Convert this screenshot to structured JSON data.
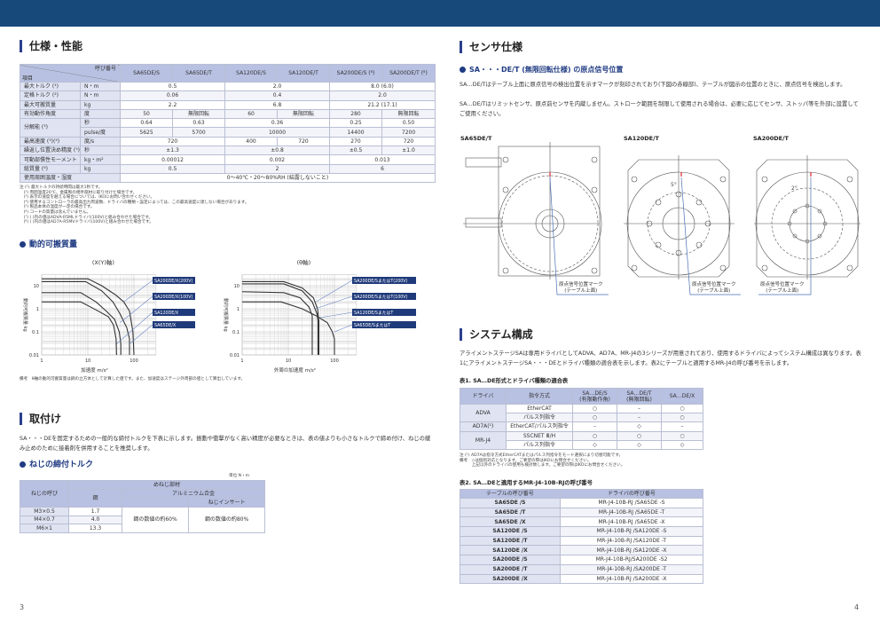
{
  "left": {
    "section_spec": "仕様・性能",
    "spec_table": {
      "head": [
        [
          {
            "t": "項目",
            "c": 2,
            "diag": "呼び番号",
            "cls": "h"
          },
          {
            "t": "SA65DE/S",
            "cls": "h"
          },
          {
            "t": "SA65DE/T",
            "cls": "h"
          },
          {
            "t": "SA120DE/S",
            "cls": "h"
          },
          {
            "t": "SA120DE/T",
            "cls": "h"
          },
          {
            "t": "SA200DE/S (⁸)",
            "cls": "h"
          },
          {
            "t": "SA200DE/T (⁸)",
            "cls": "h"
          }
        ]
      ],
      "rows": [
        [
          {
            "t": "最大トルク (¹)",
            "cls": "s"
          },
          {
            "t": "N・m",
            "cls": "s"
          },
          {
            "t": "0.5",
            "c": 2
          },
          {
            "t": "2.0",
            "c": 2
          },
          {
            "t": "8.0 (6.0)",
            "c": 2
          }
        ],
        [
          {
            "t": "定格トルク (²)",
            "cls": "s"
          },
          {
            "t": "N・m",
            "cls": "s"
          },
          {
            "t": "0.06",
            "c": 2
          },
          {
            "t": "0.4",
            "c": 2
          },
          {
            "t": "2.0",
            "c": 2
          }
        ],
        [
          {
            "t": "最大可搬質量",
            "cls": "s"
          },
          {
            "t": "kg",
            "cls": "s"
          },
          {
            "t": "2.2",
            "c": 2
          },
          {
            "t": "6.8",
            "c": 2
          },
          {
            "t": "21.2 (17.1)",
            "c": 2
          }
        ],
        [
          {
            "t": "有効動作角度",
            "cls": "s"
          },
          {
            "t": "度",
            "cls": "s"
          },
          {
            "t": "50"
          },
          {
            "t": "無限回転"
          },
          {
            "t": "60"
          },
          {
            "t": "無限回転"
          },
          {
            "t": "280"
          },
          {
            "t": "無限回転"
          }
        ],
        [
          {
            "t": "分解能 (³)",
            "cls": "s",
            "r": 2
          },
          {
            "t": "秒",
            "cls": "s"
          },
          {
            "t": "0.64"
          },
          {
            "t": "0.63"
          },
          {
            "t": "0.36",
            "c": 2
          },
          {
            "t": "0.25"
          },
          {
            "t": "0.50"
          }
        ],
        [
          {
            "t": "pulse/度",
            "cls": "s"
          },
          {
            "t": "5625"
          },
          {
            "t": "5700"
          },
          {
            "t": "10000",
            "c": 2
          },
          {
            "t": "14400"
          },
          {
            "t": "7200"
          }
        ],
        [
          {
            "t": "最高速度 (³)(⁴)",
            "cls": "s"
          },
          {
            "t": "度/s",
            "cls": "s"
          },
          {
            "t": "720",
            "c": 2
          },
          {
            "t": "400"
          },
          {
            "t": "720"
          },
          {
            "t": "270"
          },
          {
            "t": "720"
          }
        ],
        [
          {
            "t": "繰返し位置決め精度 (⁵)",
            "cls": "s"
          },
          {
            "t": "秒",
            "cls": "s"
          },
          {
            "t": "±1.3",
            "c": 2
          },
          {
            "t": "±0.8",
            "c": 2
          },
          {
            "t": "±0.5"
          },
          {
            "t": "±1.0"
          }
        ],
        [
          {
            "t": "可動部慣性モーメント",
            "cls": "s"
          },
          {
            "t": "kg・m²",
            "cls": "s"
          },
          {
            "t": "0.00012",
            "c": 2
          },
          {
            "t": "0.002",
            "c": 2
          },
          {
            "t": "0.013",
            "c": 2
          }
        ],
        [
          {
            "t": "総質量 (⁶)",
            "cls": "s"
          },
          {
            "t": "kg",
            "cls": "s"
          },
          {
            "t": "0.5",
            "c": 2
          },
          {
            "t": "2",
            "c": 2
          },
          {
            "t": "6",
            "c": 2
          }
        ],
        [
          {
            "t": "使用周囲温度・湿度",
            "cls": "s",
            "c": 2
          },
          {
            "t": "0〜40℃・20〜80%RH (結露しないこと)",
            "c": 6
          }
        ]
      ]
    },
    "spec_notes": [
      "注 (¹) 最大トルクの持続時間は最大1秒です。",
      "　(²) 周囲温度20℃、金属製の相手部材に取り付けた場合です。",
      "　(³) 表示の速度を越える場合については、IKOにお問い合わせください。",
      "　(⁴) 使用するコントローラの最高出力周波数、ドライバの種類・設定によっては、この最高速度に達しない場合があります。",
      "　(⁵) 製品本体の温度が一定の場合です。",
      "　(⁶) コードの質量は含んでいません。",
      "　(⁷) ( )内の値はADVA-R5MLドライバ(100V)と組み合わせた場合です。",
      "　(⁸) ( )内の値はAD7A-R5MVドライバ(100V)と組み合わせた場合です。"
    ],
    "section_payload": "動的可搬質量",
    "chart_remark": "備考　θ軸の動的可搬質量は鋼の立方体として計算した値です。また、加速度はステージ外周部の値として算出しています。",
    "section_mount": "取付け",
    "mount_text": "SA・・・DEを固定するための一般的な締付トルクを下表に示します。振動や衝撃がなく高い精度が必要なときは、表の値よりも小さなトルクで締め付け、ねじの緩み止めのために接着剤を併用することを推奨します。",
    "section_torque": "ねじの締付トルク",
    "torque_unit": "単位 N・m",
    "torque_table": {
      "head": [
        [
          {
            "t": "ねじの呼び",
            "r": 3,
            "cls": "h"
          },
          {
            "t": "めねじ部材",
            "c": 3,
            "cls": "h"
          }
        ],
        [
          {
            "t": "鋼",
            "r": 2,
            "cls": "h"
          },
          {
            "t": "アルミニウム合金",
            "c": 2,
            "cls": "h"
          }
        ],
        [
          {
            "t": "",
            "cls": "h"
          },
          {
            "t": "ねじインサート",
            "cls": "h"
          }
        ]
      ],
      "rows": [
        [
          {
            "t": "M3×0.5",
            "cls": "sc"
          },
          {
            "t": "1.7"
          },
          {
            "t": "鋼の数値の約60%",
            "r": 3
          },
          {
            "t": "鋼の数値の約80%",
            "r": 3
          }
        ],
        [
          {
            "t": "M4×0.7",
            "cls": "sc"
          },
          {
            "t": "4.0"
          }
        ],
        [
          {
            "t": "M6×1",
            "cls": "sc"
          },
          {
            "t": "13.3"
          }
        ]
      ]
    },
    "page_number": "3"
  },
  "chart_data": [
    {
      "type": "line",
      "title": "(X(Y)軸)",
      "xlabel": "加速度 m/s²",
      "ylabel": "動的可搬質量 kg",
      "xscale": "log",
      "yscale": "log",
      "xlim": [
        1,
        300
      ],
      "ylim": [
        0.01,
        30
      ],
      "xticks": [
        "1",
        "10",
        "100"
      ],
      "yticks": [
        "0.01",
        "0.1",
        "1",
        "10"
      ],
      "grid": true,
      "series": [
        {
          "name": "SA200DE/X(200V)",
          "points": [
            [
              1,
              20
            ],
            [
              10,
              20
            ],
            [
              20,
              10
            ],
            [
              40,
              4
            ],
            [
              60,
              2
            ],
            [
              80,
              0.8
            ],
            [
              95,
              0.1
            ],
            [
              100,
              0.01
            ]
          ]
        },
        {
          "name": "SA200DE/X(100V)",
          "points": [
            [
              1,
              15
            ],
            [
              9,
              15
            ],
            [
              20,
              6
            ],
            [
              35,
              2
            ],
            [
              50,
              0.6
            ],
            [
              70,
              0.15
            ],
            [
              80,
              0.05
            ],
            [
              80,
              0.01
            ]
          ]
        },
        {
          "name": "SA120DE/X",
          "points": [
            [
              1,
              5
            ],
            [
              7,
              5
            ],
            [
              15,
              2
            ],
            [
              25,
              0.8
            ],
            [
              38,
              0.35
            ],
            [
              48,
              0.1
            ],
            [
              52,
              0.03
            ],
            [
              52,
              0.01
            ]
          ]
        },
        {
          "name": "SA65DE/X",
          "points": [
            [
              1,
              2
            ],
            [
              7,
              2
            ],
            [
              15,
              0.9
            ],
            [
              28,
              0.45
            ],
            [
              36,
              0.2
            ],
            [
              41,
              0.05
            ],
            [
              42,
              0.01
            ]
          ]
        }
      ]
    },
    {
      "type": "line",
      "title": "(θ軸)",
      "xlabel": "外周の加速度 m/s²",
      "ylabel": "動的可搬質量 kg",
      "xscale": "log",
      "yscale": "log",
      "xlim": [
        1,
        300
      ],
      "ylim": [
        0.01,
        30
      ],
      "xticks": [
        "1",
        "10",
        "100"
      ],
      "yticks": [
        "0.01",
        "0.1",
        "1",
        "10"
      ],
      "grid": true,
      "series": [
        {
          "name": "SA200DE/SまたはT(200V)",
          "points": [
            [
              1,
              15
            ],
            [
              8,
              15
            ],
            [
              20,
              8
            ],
            [
              35,
              3
            ],
            [
              43,
              1
            ],
            [
              46,
              0.3
            ],
            [
              46,
              0.01
            ]
          ]
        },
        {
          "name": "SA200DE/SまたはT(100V)",
          "points": [
            [
              1,
              12
            ],
            [
              8,
              12
            ],
            [
              20,
              6
            ],
            [
              33,
              2
            ],
            [
              42,
              0.6
            ],
            [
              44,
              0.3
            ],
            [
              44,
              0.01
            ]
          ]
        },
        {
          "name": "SA120DE/SまたはT",
          "points": [
            [
              1,
              5.5
            ],
            [
              8,
              5
            ],
            [
              18,
              3
            ],
            [
              28,
              1.2
            ],
            [
              33,
              0.5
            ],
            [
              33,
              0.01
            ]
          ]
        },
        {
          "name": "SA65DE/SまたはT",
          "points": [
            [
              1,
              2
            ],
            [
              7,
              2
            ],
            [
              20,
              1
            ],
            [
              40,
              0.5
            ],
            [
              70,
              0.25
            ],
            [
              90,
              0.1
            ],
            [
              100,
              0.05
            ],
            [
              100,
              0.01
            ]
          ]
        }
      ]
    }
  ],
  "right": {
    "section_sensor": "センサ仕様",
    "sensor_sub": "SA・・・DE/T (無限回転仕様) の原点信号位置",
    "sensor_text1": "SA…DE/Tはテーブル上面に原点信号の検出位置を示すマークが刻印されており(下図の赤線部)、テーブルが図示の位置のときに、原点信号を検出します。",
    "sensor_text2": "SA…DE/Tはリミットセンサ、原点前センサを内蔵しません。ストローク範囲を制限して使用される場合は、必要に応じてセンサ、ストッパ等を外部に設置してご使用ください。",
    "drawings": [
      {
        "label": "SA65DE/T",
        "mark1": "原点信号位置マーク",
        "mark2": "(テーブル上面)"
      },
      {
        "label": "SA120DE/T",
        "mark1": "原点信号位置マーク",
        "mark2": "(テーブル上面)",
        "angle": "5°"
      },
      {
        "label": "SA200DE/T",
        "mark1": "原点信号位置マーク",
        "mark2": "(テーブル上面)",
        "angle": "2°"
      }
    ],
    "section_system": "システム構成",
    "system_text": "アライメントステージSAは専用ドライバとしてADVA、AD7A、MR-J4の3シリーズが用意されており、使用するドライバによってシステム構成は異なります。表1にアライメントステージSA・・・DEとドライバ種類の適合表を示します。表2にテーブルと適用するMR-J4の呼び番号を示します。",
    "table1_title": "表1. SA…DE形式とドライバ種類の適合表",
    "table1": {
      "head": [
        [
          {
            "t": "ドライバ",
            "cls": "h"
          },
          {
            "t": "指令方式",
            "cls": "h"
          },
          {
            "t": "SA…DE/S\n(有限動作角)",
            "cls": "h"
          },
          {
            "t": "SA…DE/T\n(無限回転)",
            "cls": "h"
          },
          {
            "t": "SA…DE/X",
            "cls": "h"
          }
        ]
      ],
      "rows": [
        [
          {
            "t": "ADVA",
            "r": 2,
            "cls": "sc"
          },
          {
            "t": "EtherCAT"
          },
          {
            "t": "○"
          },
          {
            "t": "–"
          },
          {
            "t": "○"
          }
        ],
        [
          {
            "t": "パルス列指令"
          },
          {
            "t": "○"
          },
          {
            "t": "–"
          },
          {
            "t": "○"
          }
        ],
        [
          {
            "t": "AD7A(¹)",
            "cls": "sc"
          },
          {
            "t": "EtherCAT/パルス列指令"
          },
          {
            "t": "–"
          },
          {
            "t": "◇"
          },
          {
            "t": "–"
          }
        ],
        [
          {
            "t": "MR-J4",
            "r": 2,
            "cls": "sc"
          },
          {
            "t": "SSCNET Ⅲ/H"
          },
          {
            "t": "○"
          },
          {
            "t": "○"
          },
          {
            "t": "○"
          }
        ],
        [
          {
            "t": "パルス列指令"
          },
          {
            "t": "◇"
          },
          {
            "t": "◇"
          },
          {
            "t": "◇"
          }
        ]
      ]
    },
    "table1_notes": [
      "注 (¹) AD7Aは指令方式EtherCATまたはパルス列指令をモード選択により切替可能です。",
      "備考　◇は個別対応となります。ご要望の際はIKOにお問合せください。",
      "　　　上記以外のドライバの使用も検討致します。ご要望の際はIKOにお問合せください。"
    ],
    "table2_title": "表2. SA…DEと適用するMR-J4-10B-RJの呼び番号",
    "table2": {
      "head": [
        [
          {
            "t": "テーブルの呼び番号",
            "cls": "h"
          },
          {
            "t": "ドライバの呼び番号",
            "cls": "h"
          }
        ]
      ],
      "rows": [
        [
          {
            "t": "SA65DE /S",
            "cls": "scb"
          },
          {
            "t": "MR-J4-10B-RJ /SA65DE -S"
          }
        ],
        [
          {
            "t": "SA65DE /T",
            "cls": "scb"
          },
          {
            "t": "MR-J4-10B-RJ /SA65DE -T"
          }
        ],
        [
          {
            "t": "SA65DE /X",
            "cls": "scb"
          },
          {
            "t": "MR-J4-10B-RJ /SA65DE -X"
          }
        ],
        [
          {
            "t": "SA120DE /S",
            "cls": "scb"
          },
          {
            "t": "MR-J4-10B-RJ /SA120DE -S"
          }
        ],
        [
          {
            "t": "SA120DE /T",
            "cls": "scb"
          },
          {
            "t": "MR-J4-10B-RJ /SA120DE -T"
          }
        ],
        [
          {
            "t": "SA120DE /X",
            "cls": "scb"
          },
          {
            "t": "MR-J4-10B-RJ /SA120DE -X"
          }
        ],
        [
          {
            "t": "SA200DE /S",
            "cls": "scb"
          },
          {
            "t": "MR-J4-10B-RJ/SA200DE -S2"
          }
        ],
        [
          {
            "t": "SA200DE /T",
            "cls": "scb"
          },
          {
            "t": "MR-J4-10B-RJ /SA200DE -T"
          }
        ],
        [
          {
            "t": "SA200DE /X",
            "cls": "scb"
          },
          {
            "t": "MR-J4-10B-RJ /SA200DE -X"
          }
        ]
      ]
    },
    "page_number": "4"
  },
  "colors": {
    "header_bar": "#17497a",
    "accent": "#2b3f8c",
    "table_head": "#b8c1e2",
    "table_side": "#dfe3f2",
    "origin_mark": "#d9252a",
    "leader": "#4a6fb5"
  }
}
